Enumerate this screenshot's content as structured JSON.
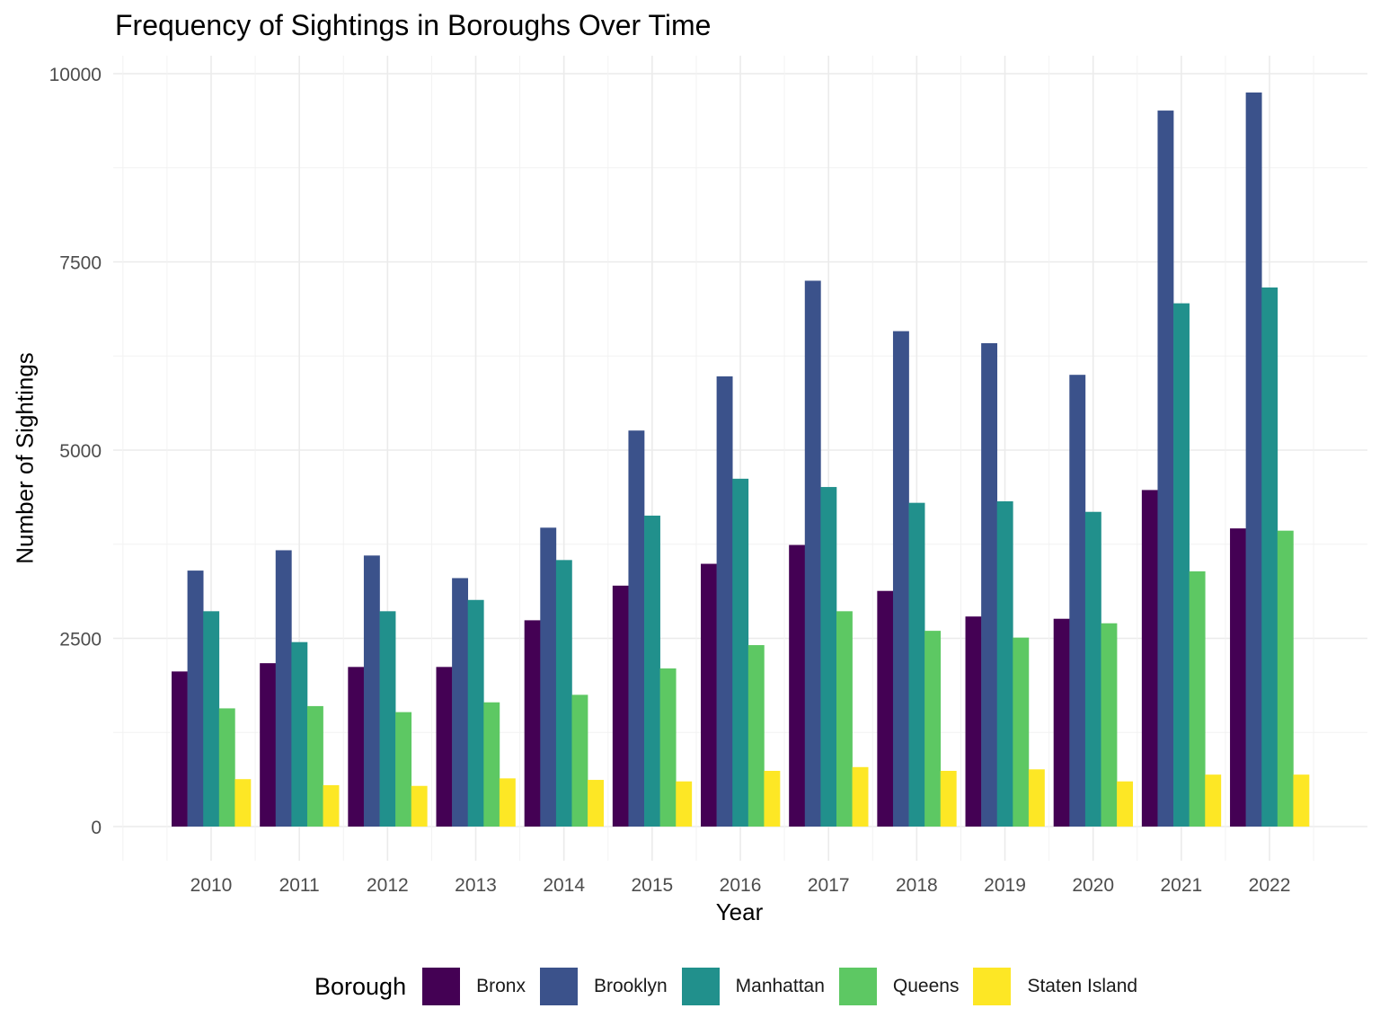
{
  "chart_data": {
    "type": "bar",
    "title": "Frequency of Sightings in Boroughs Over Time",
    "xlabel": "Year",
    "ylabel": "Number of Sightings",
    "legend_title": "Borough",
    "legend_position": "bottom",
    "grid": true,
    "ylim": [
      0,
      10000
    ],
    "yticks": [
      0,
      2500,
      5000,
      7500,
      10000
    ],
    "categories": [
      "2010",
      "2011",
      "2012",
      "2013",
      "2014",
      "2015",
      "2016",
      "2017",
      "2018",
      "2019",
      "2020",
      "2021",
      "2022"
    ],
    "series": [
      {
        "name": "Bronx",
        "color": "#440154",
        "values": [
          2060,
          2170,
          2120,
          2120,
          2740,
          3200,
          3490,
          3740,
          3130,
          2790,
          2760,
          4470,
          3960
        ]
      },
      {
        "name": "Brooklyn",
        "color": "#3B528B",
        "values": [
          3400,
          3670,
          3600,
          3300,
          3970,
          5260,
          5980,
          7250,
          6580,
          6420,
          6000,
          9510,
          9750
        ]
      },
      {
        "name": "Manhattan",
        "color": "#21908C",
        "values": [
          2860,
          2450,
          2860,
          3010,
          3540,
          4130,
          4620,
          4510,
          4300,
          4320,
          4180,
          6950,
          7160
        ]
      },
      {
        "name": "Queens",
        "color": "#5DC863",
        "values": [
          1570,
          1600,
          1520,
          1650,
          1750,
          2100,
          2410,
          2860,
          2600,
          2510,
          2700,
          3390,
          3930
        ]
      },
      {
        "name": "Staten Island",
        "color": "#FDE725",
        "values": [
          630,
          550,
          540,
          640,
          620,
          600,
          740,
          790,
          740,
          760,
          600,
          690,
          690
        ]
      }
    ]
  }
}
